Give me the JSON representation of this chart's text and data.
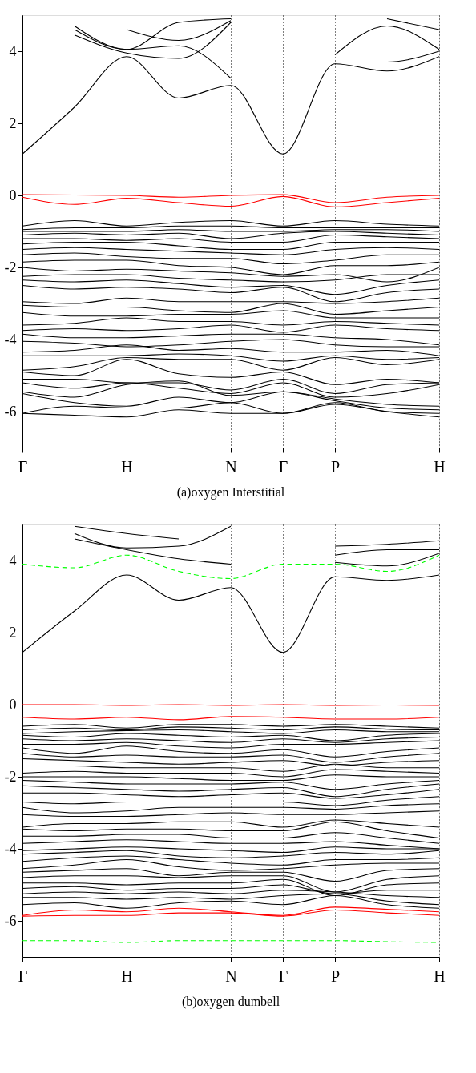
{
  "chart_data": [
    {
      "type": "line",
      "title": "(a)oxygen Interstitial",
      "grid": "x",
      "categories": [
        "Γ",
        null,
        "H",
        null,
        "N",
        "Γ",
        "P",
        null,
        "H"
      ],
      "ylim": [
        -7,
        5
      ],
      "yticks": [
        -6,
        -4,
        -2,
        0,
        2,
        4
      ],
      "series": [
        {
          "color": "#000000",
          "values": [
            1.15,
            2.45,
            3.85,
            2.7,
            3.05,
            1.15,
            3.65,
            3.45,
            3.85
          ]
        },
        {
          "color": "#000000",
          "values": [
            null,
            4.45,
            3.95,
            3.8,
            4.8,
            null,
            3.7,
            3.7,
            4.0
          ]
        },
        {
          "color": "#000000",
          "values": [
            null,
            4.6,
            4.05,
            4.15,
            3.25,
            null,
            3.9,
            4.7,
            4.05
          ]
        },
        {
          "color": "#000000",
          "values": [
            null,
            4.7,
            4.05,
            4.8,
            4.9,
            null,
            null,
            4.9,
            4.6
          ]
        },
        {
          "color": "#000000",
          "values": [
            null,
            null,
            4.6,
            4.3,
            4.85,
            null,
            null,
            null,
            null
          ]
        },
        {
          "color": "#ff0000",
          "values": [
            0.02,
            0.01,
            0.0,
            -0.05,
            0.0,
            0.02,
            -0.2,
            -0.05,
            0.0
          ]
        },
        {
          "color": "#ff0000",
          "values": [
            -0.05,
            -0.25,
            -0.08,
            -0.2,
            -0.3,
            -0.03,
            -0.32,
            -0.2,
            -0.08
          ]
        },
        {
          "color": "#000000",
          "values": [
            -0.85,
            -0.7,
            -0.85,
            -0.75,
            -0.7,
            -0.85,
            -0.7,
            -0.8,
            -0.85
          ]
        },
        {
          "color": "#000000",
          "values": [
            -0.95,
            -0.9,
            -0.9,
            -0.85,
            -0.85,
            -0.9,
            -0.9,
            -0.9,
            -0.9
          ]
        },
        {
          "color": "#000000",
          "values": [
            -1.0,
            -1.0,
            -1.0,
            -0.95,
            -1.0,
            -1.0,
            -0.95,
            -0.95,
            -1.0
          ]
        },
        {
          "color": "#000000",
          "values": [
            -1.1,
            -1.05,
            -1.1,
            -1.05,
            -1.2,
            -1.05,
            -1.0,
            -1.05,
            -1.1
          ]
        },
        {
          "color": "#000000",
          "values": [
            -1.2,
            -1.2,
            -1.25,
            -1.2,
            -1.3,
            -1.3,
            -1.1,
            -1.15,
            -1.2
          ]
        },
        {
          "color": "#000000",
          "values": [
            -1.35,
            -1.3,
            -1.3,
            -1.4,
            -1.5,
            -1.5,
            -1.3,
            -1.3,
            -1.3
          ]
        },
        {
          "color": "#000000",
          "values": [
            -1.5,
            -1.45,
            -1.5,
            -1.55,
            -1.6,
            -1.65,
            -1.5,
            -1.45,
            -1.5
          ]
        },
        {
          "color": "#000000",
          "values": [
            -1.65,
            -1.6,
            -1.7,
            -1.75,
            -1.75,
            -1.9,
            -1.8,
            -1.65,
            -1.65
          ]
        },
        {
          "color": "#000000",
          "values": [
            -1.85,
            -1.8,
            -1.8,
            -1.95,
            -2.0,
            -2.2,
            -1.95,
            -1.95,
            -1.85
          ]
        },
        {
          "color": "#000000",
          "values": [
            -2.0,
            -2.1,
            -2.05,
            -2.1,
            -2.15,
            -2.25,
            -2.2,
            -2.4,
            -2.0
          ]
        },
        {
          "color": "#000000",
          "values": [
            -2.25,
            -2.2,
            -2.2,
            -2.3,
            -2.35,
            -2.4,
            -2.35,
            -2.2,
            -2.2
          ]
        },
        {
          "color": "#000000",
          "values": [
            -2.35,
            -2.4,
            -2.35,
            -2.45,
            -2.55,
            -2.5,
            -2.75,
            -2.5,
            -2.35
          ]
        },
        {
          "color": "#000000",
          "values": [
            -2.5,
            -2.6,
            -2.55,
            -2.6,
            -2.7,
            -2.55,
            -2.95,
            -2.7,
            -2.6
          ]
        },
        {
          "color": "#000000",
          "values": [
            -2.95,
            -3.0,
            -2.85,
            -2.95,
            -2.95,
            -2.95,
            -3.0,
            -2.95,
            -2.85
          ]
        },
        {
          "color": "#000000",
          "values": [
            -3.05,
            -3.1,
            -3.1,
            -3.2,
            -3.25,
            -3.0,
            -3.3,
            -3.2,
            -3.1
          ]
        },
        {
          "color": "#000000",
          "values": [
            -3.25,
            -3.35,
            -3.35,
            -3.3,
            -3.3,
            -3.2,
            -3.4,
            -3.4,
            -3.4
          ]
        },
        {
          "color": "#000000",
          "values": [
            -3.6,
            -3.55,
            -3.4,
            -3.5,
            -3.5,
            -3.6,
            -3.5,
            -3.55,
            -3.6
          ]
        },
        {
          "color": "#000000",
          "values": [
            -3.75,
            -3.7,
            -3.75,
            -3.7,
            -3.6,
            -3.8,
            -3.6,
            -3.7,
            -3.75
          ]
        },
        {
          "color": "#000000",
          "values": [
            -3.85,
            -3.95,
            -3.95,
            -3.9,
            -3.85,
            -3.85,
            -3.95,
            -4.0,
            -4.15
          ]
        },
        {
          "color": "#000000",
          "values": [
            -4.05,
            -4.1,
            -4.2,
            -4.15,
            -4.05,
            -4.0,
            -4.15,
            -4.2,
            -4.2
          ]
        },
        {
          "color": "#000000",
          "values": [
            -4.35,
            -4.3,
            -4.15,
            -4.3,
            -4.25,
            -4.35,
            -4.35,
            -4.3,
            -4.45
          ]
        },
        {
          "color": "#000000",
          "values": [
            -4.45,
            -4.45,
            -4.45,
            -4.4,
            -4.45,
            -4.6,
            -4.45,
            -4.55,
            -4.5
          ]
        },
        {
          "color": "#000000",
          "values": [
            -4.85,
            -4.75,
            -4.5,
            -4.55,
            -4.55,
            -4.85,
            -4.5,
            -4.7,
            -4.55
          ]
        },
        {
          "color": "#000000",
          "values": [
            -4.9,
            -5.0,
            -4.55,
            -4.95,
            -5.05,
            -4.9,
            -5.25,
            -5.1,
            -5.2
          ]
        },
        {
          "color": "#000000",
          "values": [
            -5.1,
            -5.1,
            -5.2,
            -5.2,
            -5.4,
            -5.1,
            -5.5,
            -5.25,
            -5.2
          ]
        },
        {
          "color": "#000000",
          "values": [
            -5.2,
            -5.35,
            -5.2,
            -5.35,
            -5.5,
            -5.2,
            -5.6,
            -5.5,
            -5.25
          ]
        },
        {
          "color": "#000000",
          "values": [
            -5.45,
            -5.6,
            -5.25,
            -5.15,
            -5.55,
            -5.45,
            -5.65,
            -5.8,
            -5.85
          ]
        },
        {
          "color": "#000000",
          "values": [
            -5.5,
            -5.75,
            -5.85,
            -5.6,
            -5.75,
            -5.45,
            -5.7,
            -5.9,
            -5.95
          ]
        },
        {
          "color": "#000000",
          "values": [
            -6.05,
            -5.85,
            -5.9,
            -5.9,
            -5.75,
            -6.05,
            -5.75,
            -6.0,
            -6.05
          ]
        },
        {
          "color": "#000000",
          "values": [
            -6.05,
            -6.1,
            -6.15,
            -5.95,
            -6.05,
            -6.05,
            -5.8,
            -6.0,
            -6.15
          ]
        }
      ]
    },
    {
      "type": "line",
      "title": "(b)oxygen dumbell",
      "grid": "x",
      "categories": [
        "Γ",
        null,
        "H",
        null,
        "N",
        "Γ",
        "P",
        null,
        "H"
      ],
      "ylim": [
        -7,
        5
      ],
      "yticks": [
        -6,
        -4,
        -2,
        0,
        2,
        4
      ],
      "series": [
        {
          "color": "#000000",
          "values": [
            1.45,
            2.6,
            3.6,
            2.9,
            3.25,
            1.45,
            3.55,
            3.45,
            3.6
          ]
        },
        {
          "color": "#000000",
          "values": [
            null,
            4.6,
            4.3,
            4.05,
            3.9,
            null,
            3.95,
            3.85,
            4.2
          ]
        },
        {
          "color": "#000000",
          "values": [
            null,
            4.75,
            4.35,
            4.4,
            4.95,
            null,
            4.15,
            4.3,
            4.3
          ]
        },
        {
          "color": "#000000",
          "values": [
            null,
            4.95,
            4.75,
            4.6,
            null,
            null,
            4.4,
            4.45,
            4.55
          ]
        },
        {
          "color": "#00ff00",
          "line_style": "dashed",
          "values": [
            3.9,
            3.8,
            4.15,
            3.7,
            3.5,
            3.9,
            3.9,
            3.7,
            4.15
          ]
        },
        {
          "color": "#ff0000",
          "values": [
            0.0,
            0.0,
            -0.02,
            0.0,
            -0.02,
            0.0,
            -0.02,
            -0.01,
            -0.02
          ]
        },
        {
          "color": "#ff0000",
          "values": [
            -0.35,
            -0.4,
            -0.35,
            -0.42,
            -0.33,
            -0.35,
            -0.4,
            -0.4,
            -0.35
          ]
        },
        {
          "color": "#000000",
          "values": [
            -0.6,
            -0.55,
            -0.65,
            -0.55,
            -0.55,
            -0.6,
            -0.55,
            -0.6,
            -0.65
          ]
        },
        {
          "color": "#000000",
          "values": [
            -0.7,
            -0.65,
            -0.7,
            -0.62,
            -0.65,
            -0.7,
            -0.62,
            -0.68,
            -0.7
          ]
        },
        {
          "color": "#000000",
          "values": [
            -0.8,
            -0.75,
            -0.72,
            -0.7,
            -0.75,
            -0.8,
            -0.7,
            -0.75,
            -0.75
          ]
        },
        {
          "color": "#000000",
          "values": [
            -0.85,
            -0.9,
            -0.8,
            -0.85,
            -0.9,
            -0.85,
            -1.0,
            -0.85,
            -0.8
          ]
        },
        {
          "color": "#000000",
          "values": [
            -0.95,
            -1.0,
            -0.95,
            -1.0,
            -1.05,
            -0.95,
            -1.05,
            -0.95,
            -0.9
          ]
        },
        {
          "color": "#000000",
          "values": [
            -1.1,
            -1.1,
            -1.05,
            -1.15,
            -1.2,
            -1.1,
            -1.1,
            -1.05,
            -1.0
          ]
        },
        {
          "color": "#000000",
          "values": [
            -1.2,
            -1.35,
            -1.15,
            -1.3,
            -1.35,
            -1.25,
            -1.45,
            -1.3,
            -1.2
          ]
        },
        {
          "color": "#000000",
          "values": [
            -1.35,
            -1.45,
            -1.4,
            -1.45,
            -1.45,
            -1.4,
            -1.6,
            -1.45,
            -1.35
          ]
        },
        {
          "color": "#000000",
          "values": [
            -1.5,
            -1.55,
            -1.6,
            -1.65,
            -1.6,
            -1.55,
            -1.7,
            -1.6,
            -1.55
          ]
        },
        {
          "color": "#000000",
          "values": [
            -1.7,
            -1.7,
            -1.75,
            -1.75,
            -1.75,
            -1.85,
            -1.65,
            -1.75,
            -1.75
          ]
        },
        {
          "color": "#000000",
          "values": [
            -1.9,
            -1.85,
            -1.9,
            -1.9,
            -1.9,
            -2.0,
            -1.8,
            -1.85,
            -1.9
          ]
        },
        {
          "color": "#000000",
          "values": [
            -2.0,
            -2.0,
            -2.0,
            -2.05,
            -2.1,
            -2.1,
            -1.95,
            -2.0,
            -2.0
          ]
        },
        {
          "color": "#000000",
          "values": [
            -2.1,
            -2.15,
            -2.2,
            -2.2,
            -2.2,
            -2.15,
            -2.35,
            -2.2,
            -2.1
          ]
        },
        {
          "color": "#000000",
          "values": [
            -2.25,
            -2.3,
            -2.35,
            -2.4,
            -2.35,
            -2.3,
            -2.55,
            -2.35,
            -2.2
          ]
        },
        {
          "color": "#000000",
          "values": [
            -2.45,
            -2.45,
            -2.5,
            -2.55,
            -2.5,
            -2.45,
            -2.6,
            -2.5,
            -2.35
          ]
        },
        {
          "color": "#000000",
          "values": [
            -2.7,
            -2.75,
            -2.7,
            -2.7,
            -2.7,
            -2.7,
            -2.8,
            -2.65,
            -2.55
          ]
        },
        {
          "color": "#000000",
          "values": [
            -2.85,
            -3.0,
            -2.95,
            -2.85,
            -2.85,
            -2.85,
            -2.9,
            -2.8,
            -2.75
          ]
        },
        {
          "color": "#000000",
          "values": [
            -3.05,
            -3.1,
            -3.1,
            -3.05,
            -3.0,
            -3.05,
            -3.05,
            -3.0,
            -2.95
          ]
        },
        {
          "color": "#000000",
          "values": [
            -3.4,
            -3.3,
            -3.3,
            -3.25,
            -3.25,
            -3.4,
            -3.2,
            -3.3,
            -3.4
          ]
        },
        {
          "color": "#000000",
          "values": [
            -3.45,
            -3.5,
            -3.45,
            -3.45,
            -3.5,
            -3.5,
            -3.25,
            -3.5,
            -3.7
          ]
        },
        {
          "color": "#000000",
          "values": [
            -3.65,
            -3.65,
            -3.6,
            -3.6,
            -3.7,
            -3.7,
            -3.55,
            -3.7,
            -3.85
          ]
        },
        {
          "color": "#000000",
          "values": [
            -3.85,
            -3.8,
            -3.75,
            -3.8,
            -3.85,
            -3.85,
            -3.8,
            -3.9,
            -4.0
          ]
        },
        {
          "color": "#000000",
          "values": [
            -4.05,
            -4.0,
            -3.95,
            -4.0,
            -4.05,
            -4.1,
            -3.95,
            -4.0,
            -4.0
          ]
        },
        {
          "color": "#000000",
          "values": [
            -4.15,
            -4.1,
            -4.05,
            -4.2,
            -4.25,
            -4.2,
            -4.1,
            -4.15,
            -4.05
          ]
        },
        {
          "color": "#000000",
          "values": [
            -4.35,
            -4.25,
            -4.2,
            -4.3,
            -4.4,
            -4.45,
            -4.3,
            -4.3,
            -4.25
          ]
        },
        {
          "color": "#000000",
          "values": [
            -4.55,
            -4.45,
            -4.3,
            -4.5,
            -4.6,
            -4.55,
            -4.45,
            -4.4,
            -4.4
          ]
        },
        {
          "color": "#000000",
          "values": [
            -4.65,
            -4.6,
            -4.55,
            -4.75,
            -4.65,
            -4.65,
            -4.9,
            -4.6,
            -4.55
          ]
        },
        {
          "color": "#000000",
          "values": [
            -4.8,
            -4.75,
            -4.75,
            -4.8,
            -4.75,
            -4.75,
            -5.2,
            -4.85,
            -4.75
          ]
        },
        {
          "color": "#000000",
          "values": [
            -4.95,
            -4.95,
            -5.0,
            -4.95,
            -4.95,
            -4.85,
            -5.3,
            -5.0,
            -4.95
          ]
        },
        {
          "color": "#000000",
          "values": [
            -5.1,
            -5.05,
            -5.15,
            -5.1,
            -5.1,
            -5.0,
            -5.25,
            -5.15,
            -5.15
          ]
        },
        {
          "color": "#000000",
          "values": [
            -5.25,
            -5.2,
            -5.25,
            -5.2,
            -5.25,
            -5.15,
            -5.2,
            -5.3,
            -5.35
          ]
        },
        {
          "color": "#000000",
          "values": [
            -5.35,
            -5.35,
            -5.4,
            -5.35,
            -5.4,
            -5.3,
            -5.25,
            -5.45,
            -5.55
          ]
        },
        {
          "color": "#000000",
          "values": [
            -5.55,
            -5.5,
            -5.65,
            -5.5,
            -5.45,
            -5.55,
            -5.3,
            -5.55,
            -5.65
          ]
        },
        {
          "color": "#ff0000",
          "values": [
            -5.85,
            -5.7,
            -5.75,
            -5.65,
            -5.75,
            -5.85,
            -5.62,
            -5.68,
            -5.75
          ]
        },
        {
          "color": "#ff0000",
          "values": [
            -5.87,
            -5.85,
            -5.85,
            -5.78,
            -5.78,
            -5.87,
            -5.7,
            -5.78,
            -5.85
          ]
        },
        {
          "color": "#00ff00",
          "line_style": "dashed",
          "values": [
            -6.55,
            -6.55,
            -6.6,
            -6.55,
            -6.55,
            -6.55,
            -6.55,
            -6.58,
            -6.6
          ]
        }
      ]
    }
  ]
}
